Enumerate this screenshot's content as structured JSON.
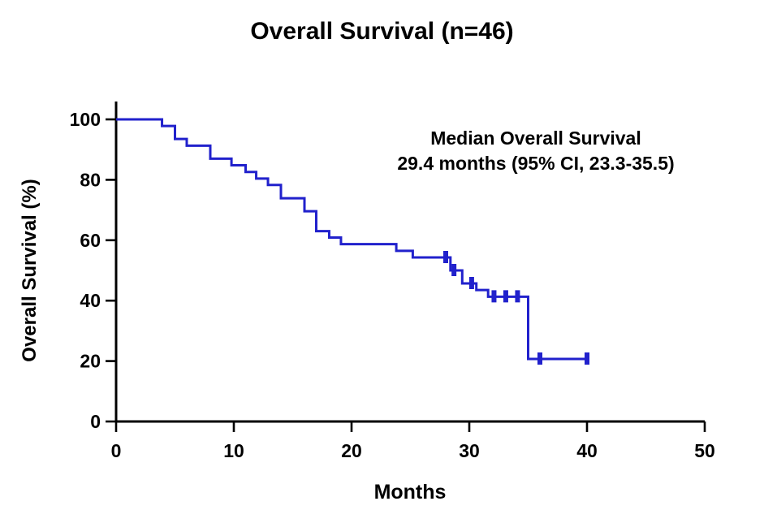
{
  "chart_data": {
    "type": "line",
    "subtype": "kaplan-meier-step-curve",
    "title": "Overall Survival (n=46)",
    "xlabel": "Months",
    "ylabel": "Overall Survival (%)",
    "xlim": [
      0,
      50
    ],
    "ylim": [
      0,
      100
    ],
    "xticks": [
      0,
      10,
      20,
      30,
      40,
      50
    ],
    "yticks": [
      100,
      80,
      60,
      40,
      20,
      0
    ],
    "grid": false,
    "legend": "none",
    "curve_color": "#2121CC",
    "axis_color": "#000000",
    "annotation": {
      "line1": "Median Overall Survival",
      "line2": "29.4 months (95% CI, 23.3-35.5)"
    },
    "series": [
      {
        "name": "Overall Survival",
        "n": 46,
        "steps": [
          {
            "time": 0.0,
            "survival": 100.0
          },
          {
            "time": 3.9,
            "survival": 97.8
          },
          {
            "time": 5.0,
            "survival": 93.5
          },
          {
            "time": 6.0,
            "survival": 91.3
          },
          {
            "time": 8.0,
            "survival": 87.0
          },
          {
            "time": 9.8,
            "survival": 84.8
          },
          {
            "time": 11.0,
            "survival": 82.6
          },
          {
            "time": 11.9,
            "survival": 80.4
          },
          {
            "time": 12.9,
            "survival": 78.3
          },
          {
            "time": 14.0,
            "survival": 73.9
          },
          {
            "time": 16.0,
            "survival": 69.6
          },
          {
            "time": 17.0,
            "survival": 63.0
          },
          {
            "time": 18.1,
            "survival": 60.9
          },
          {
            "time": 19.1,
            "survival": 58.7
          },
          {
            "time": 23.8,
            "survival": 56.5
          },
          {
            "time": 25.2,
            "survival": 54.3
          },
          {
            "time": 28.4,
            "survival": 50.0
          },
          {
            "time": 29.4,
            "survival": 45.7
          },
          {
            "time": 30.6,
            "survival": 43.5
          },
          {
            "time": 31.6,
            "survival": 41.3
          },
          {
            "time": 35.0,
            "survival": 20.7
          }
        ],
        "end_time": 40.0,
        "censor_marks": [
          {
            "time": 28.0,
            "survival": 54.3
          },
          {
            "time": 28.7,
            "survival": 50.0
          },
          {
            "time": 30.2,
            "survival": 45.7
          },
          {
            "time": 32.1,
            "survival": 41.3
          },
          {
            "time": 33.1,
            "survival": 41.3
          },
          {
            "time": 34.1,
            "survival": 41.3
          },
          {
            "time": 36.0,
            "survival": 20.7
          },
          {
            "time": 40.0,
            "survival": 20.7
          }
        ]
      }
    ]
  }
}
